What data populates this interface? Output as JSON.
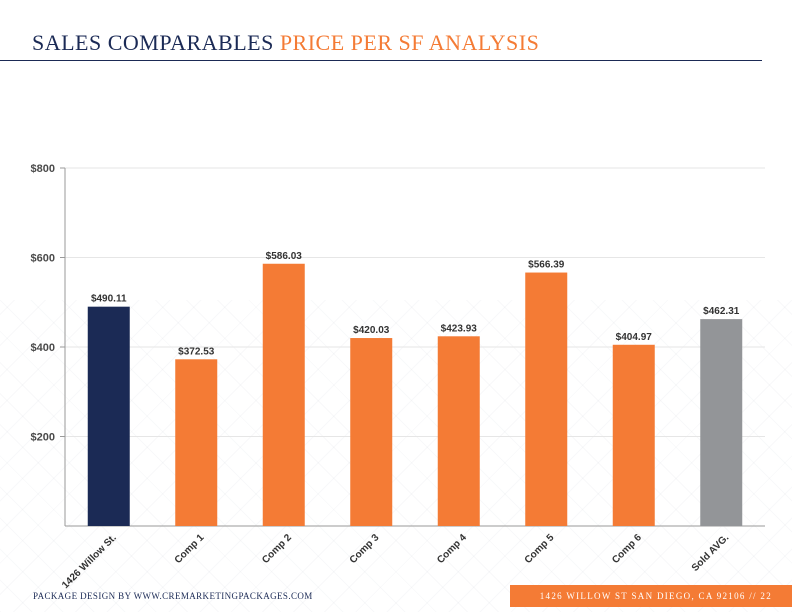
{
  "header": {
    "title_part1": "SALES COMPARABLES",
    "title_part2": "PRICE PER SF ANALYSIS"
  },
  "footer": {
    "left_text": "PACKAGE DESIGN BY WWW.CREMARKETINGPACKAGES.COM",
    "right_text": "1426 WILLOW ST SAN DIEGO, CA 92106 // 22"
  },
  "colors": {
    "navy": "#1b2a55",
    "orange": "#f47b35",
    "gray": "#939598"
  },
  "chart_data": {
    "type": "bar",
    "categories": [
      "1426 Willow St.",
      "Comp 1",
      "Comp 2",
      "Comp 3",
      "Comp 4",
      "Comp 5",
      "Comp 6",
      "Sold AVG."
    ],
    "values": [
      490.11,
      372.53,
      586.03,
      420.03,
      423.93,
      566.39,
      404.97,
      462.31
    ],
    "data_labels": [
      "$490.11",
      "$372.53",
      "$586.03",
      "$420.03",
      "$423.93",
      "$566.39",
      "$404.97",
      "$462.31"
    ],
    "bar_colors": [
      "#1b2a55",
      "#f47b35",
      "#f47b35",
      "#f47b35",
      "#f47b35",
      "#f47b35",
      "#f47b35",
      "#939598"
    ],
    "ylim": [
      0,
      800
    ],
    "y_ticks": [
      200,
      400,
      600,
      800
    ],
    "y_tick_labels": [
      "$200",
      "$400",
      "$600",
      "$800"
    ],
    "grid": true,
    "title": "",
    "xlabel": "",
    "ylabel": ""
  }
}
